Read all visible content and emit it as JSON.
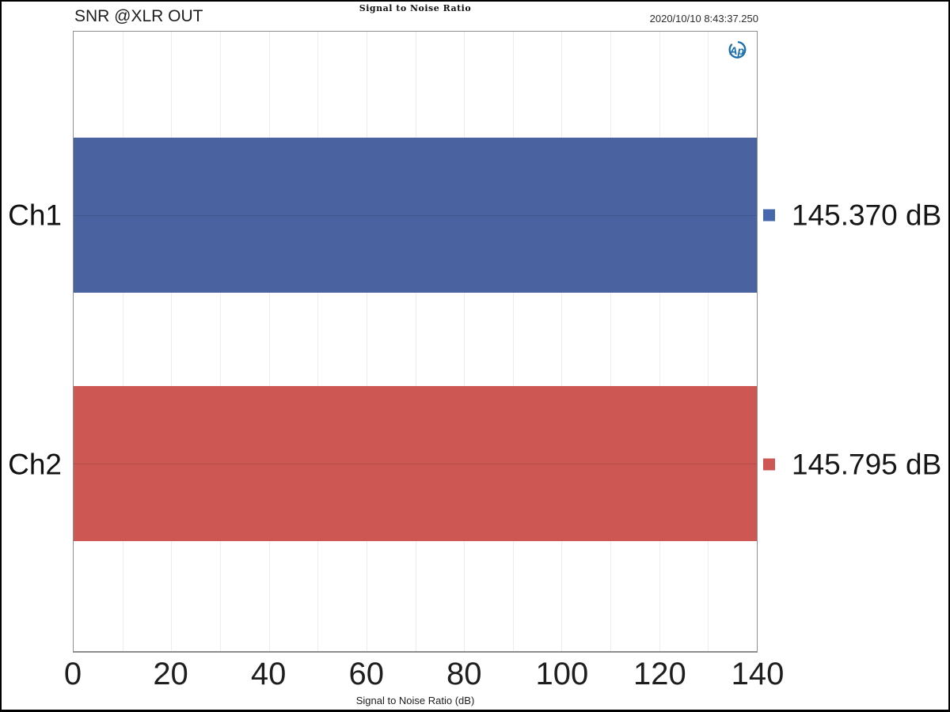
{
  "window": {
    "title": "Signal to Noise Ratio",
    "annotation": "SNR @XLR OUT",
    "timestamp": "2020/10/10 8:43:37.250",
    "logo_text": "Ap"
  },
  "chart_data": {
    "type": "bar",
    "orientation": "horizontal",
    "title": "Signal to Noise Ratio",
    "xlabel": "Signal to Noise Ratio (dB)",
    "xlim": [
      0,
      140
    ],
    "x_major_ticks": [
      0,
      20,
      40,
      60,
      80,
      100,
      120,
      140
    ],
    "x_minor_step": 10,
    "grid": "vertical minor gridlines every 10 dB, light gray; faint horizontal line at each bar center",
    "legend_position": "right of plot: square marker plus value label per channel",
    "categories": [
      "Ch1",
      "Ch2"
    ],
    "series": [
      {
        "name": "Ch1",
        "value": 145.37,
        "label": "145.370 dB",
        "bar_color": "#4a62a0",
        "marker_color": "#4667ad"
      },
      {
        "name": "Ch2",
        "value": 145.795,
        "label": "145.795 dB",
        "bar_color": "#cd5752",
        "marker_color": "#cd5752"
      }
    ],
    "bars_clipped_at_xmax": true
  },
  "colors": {
    "background": "#ffffff",
    "frame_border": "#000000",
    "plot_border": "#8e8e8e",
    "gridline": "#e8e8ea",
    "logo_blue": "#1b6fad",
    "text": "#1a1a1a"
  }
}
